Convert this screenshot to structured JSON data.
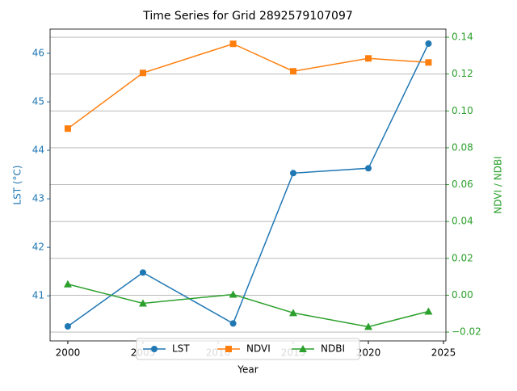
{
  "chart_data": {
    "type": "line",
    "title": "Time Series for Grid 2892579107097",
    "x_label": "Year",
    "y_label": "LST (°C)",
    "y2_label": "NDVI / NDBI",
    "x": [
      2000,
      2005,
      2011,
      2015,
      2020,
      2024
    ],
    "series": [
      {
        "name": "LST",
        "color": "#1f77b4",
        "marker": "circle",
        "values": [
          40.37,
          41.48,
          40.43,
          43.53,
          43.63,
          46.2
        ]
      },
      {
        "name": "NDVI",
        "color": "#ff7f0e",
        "marker": "square",
        "axis": "y2",
        "values": [
          0.0904,
          0.1206,
          0.1364,
          0.1215,
          0.1285,
          0.1263
        ]
      },
      {
        "name": "NDBI",
        "color": "#2ca02c",
        "marker": "triangle",
        "axis": "y2",
        "values": [
          0.006,
          -0.0044,
          0.0004,
          -0.0096,
          -0.0171,
          -0.0088
        ]
      }
    ],
    "xlim": [
      1998.82,
      2025.16
    ],
    "xticks": [
      2000,
      2005,
      2010,
      2015,
      2020,
      2025
    ],
    "ylim": [
      40.07,
      46.5
    ],
    "yticks": [
      41,
      42,
      43,
      44,
      45,
      46
    ],
    "y_color": "#1f77b4",
    "y2lim": [
      -0.0248,
      0.1444
    ],
    "y2_color": "#2ca02c",
    "y2ticks": [
      {
        "value": -0.02,
        "label": "−0.02"
      },
      {
        "value": 0,
        "label": "0.00"
      },
      0.02,
      0.04,
      0.06,
      0.08,
      {
        "value": 0.1,
        "label": "0.10"
      },
      0.12,
      0.14
    ],
    "grid": "y2",
    "legend": "lower center"
  }
}
